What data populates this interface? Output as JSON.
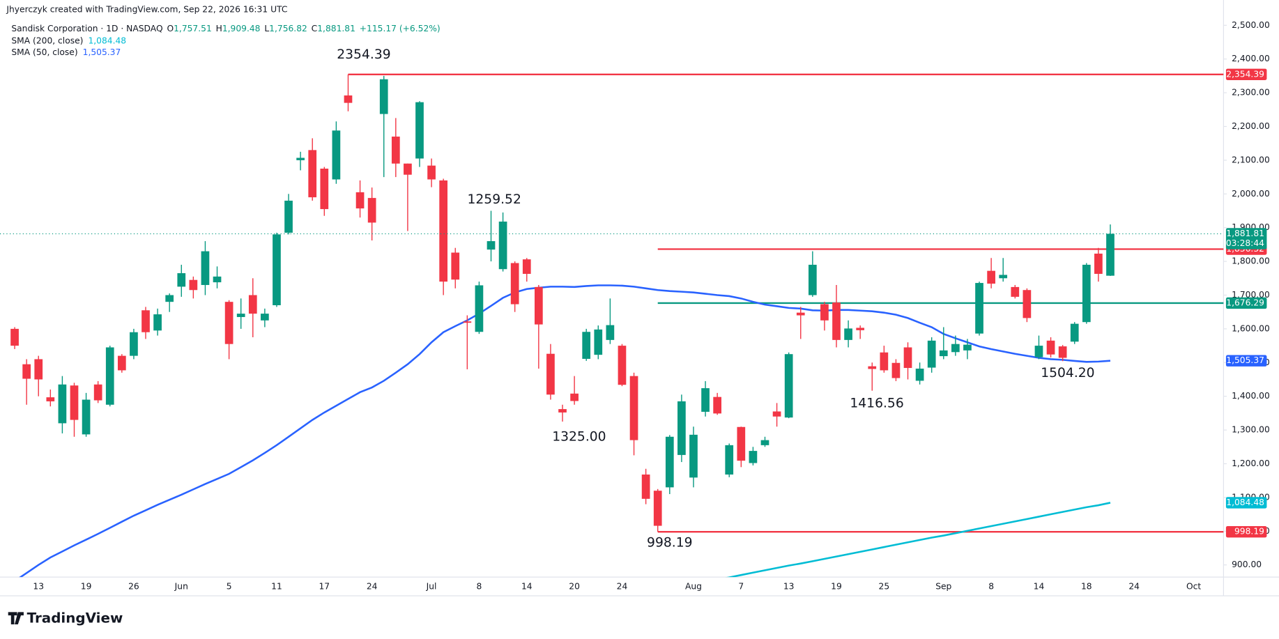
{
  "header": {
    "attribution": "Jhyerczyk created with TradingView.com, Sep 22, 2026 16:31 UTC",
    "symbol": "Sandisk Corporation · 1D · NASDAQ",
    "ohlc": [
      {
        "key": "O",
        "label": "1,757.51"
      },
      {
        "key": "H",
        "label": "1,909.48"
      },
      {
        "key": "L",
        "label": "1,756.82"
      },
      {
        "key": "C",
        "label": "1,881.81"
      }
    ],
    "change": "+115.17 (+6.52%)",
    "logo": "TradingView"
  },
  "chart_data": {
    "type": "candlestick",
    "categories": [
      null,
      null,
      "13",
      null,
      null,
      null,
      "19",
      null,
      null,
      null,
      "26",
      null,
      null,
      null,
      "Jun",
      null,
      null,
      null,
      "5",
      null,
      null,
      null,
      "11",
      null,
      null,
      null,
      "17",
      null,
      null,
      null,
      "24",
      null,
      null,
      null,
      null,
      "Jul",
      null,
      null,
      null,
      "8",
      null,
      null,
      null,
      "14",
      null,
      null,
      null,
      "20",
      null,
      null,
      null,
      "24",
      null,
      null,
      null,
      null,
      null,
      "Aug",
      null,
      null,
      null,
      "7",
      null,
      null,
      null,
      "13",
      null,
      null,
      null,
      "19",
      null,
      null,
      null,
      "25",
      null,
      null,
      null,
      null,
      "Sep",
      null,
      null,
      null,
      "8",
      null,
      null,
      null,
      "14",
      null,
      null,
      null,
      "18",
      null,
      null,
      null,
      "24",
      null,
      null,
      null,
      null,
      "Oct"
    ],
    "open": [
      1600,
      1495,
      1510,
      1397,
      1320,
      1432,
      1287,
      1435,
      1375,
      1520,
      1520,
      1655,
      1595,
      1680,
      1725,
      1745,
      1730,
      1738,
      1680,
      1635,
      1700,
      1625,
      1670,
      1885,
      2100,
      2130,
      2075,
      2043,
      2292,
      2005,
      1988,
      2237,
      2170,
      2090,
      2105,
      2084,
      2040,
      1826,
      1622,
      1591,
      1835,
      1777,
      1795,
      1806,
      1724,
      1526,
      1362,
      1408,
      1511,
      1523,
      1567,
      1550,
      1460,
      1168,
      1120,
      1130,
      1226,
      1159,
      1354,
      1398,
      1168,
      1309,
      1202,
      1255,
      1355,
      1337,
      1648,
      1700,
      1673,
      1678,
      1567,
      1603,
      1489,
      1530,
      1499,
      1545,
      1446,
      1485,
      1519,
      1531,
      1536,
      1586,
      1772,
      1750,
      1724,
      1715,
      1516,
      1565,
      1548,
      1562,
      1620,
      1823,
      1757.51,
      null,
      null,
      null,
      null,
      null,
      null,
      null
    ],
    "high": [
      1605,
      1510,
      1520,
      1420,
      1460,
      1440,
      1410,
      1445,
      1550,
      1525,
      1600,
      1665,
      1660,
      1705,
      1790,
      1755,
      1860,
      1785,
      1685,
      1690,
      1750,
      1660,
      1885,
      2000,
      2125,
      2165,
      2080,
      2215,
      2354.39,
      2040,
      2019,
      2350,
      2225,
      2090,
      2275,
      2105,
      2045,
      1840,
      1640,
      1740,
      1950,
      1945,
      1800,
      1810,
      1730,
      1555,
      1375,
      1460,
      1600,
      1610,
      1690,
      1555,
      1470,
      1185,
      1125,
      1285,
      1405,
      1310,
      1445,
      1410,
      1260,
      1310,
      1250,
      1280,
      1380,
      1530,
      1665,
      1830,
      1680,
      1730,
      1625,
      1610,
      1500,
      1550,
      1510,
      1560,
      1500,
      1575,
      1605,
      1580,
      1570,
      1740,
      1810,
      1810,
      1730,
      1720,
      1580,
      1575,
      1552,
      1620,
      1795,
      1840,
      1909.48,
      null,
      null,
      null,
      null,
      null,
      null,
      null
    ],
    "low": [
      1540,
      1375,
      1400,
      1370,
      1290,
      1280,
      1280,
      1380,
      1370,
      1470,
      1510,
      1570,
      1580,
      1650,
      1695,
      1690,
      1700,
      1720,
      1510,
      1600,
      1575,
      1605,
      1665,
      1880,
      2070,
      1980,
      1935,
      2030,
      2245,
      1930,
      1862,
      2050,
      2050,
      1890,
      2080,
      2020,
      1700,
      1720,
      1480,
      1585,
      1800,
      1770,
      1650,
      1740,
      1482,
      1390,
      1325,
      1375,
      1505,
      1510,
      1555,
      1430,
      1225,
      1080,
      998.19,
      1110,
      1205,
      1130,
      1340,
      1345,
      1160,
      1190,
      1195,
      1250,
      1310,
      1335,
      1570,
      1695,
      1595,
      1545,
      1545,
      1570,
      1416.56,
      1470,
      1445,
      1450,
      1435,
      1470,
      1510,
      1520,
      1510,
      1580,
      1720,
      1740,
      1690,
      1620,
      1510,
      1515,
      1504.2,
      1555,
      1615,
      1740,
      1756.82,
      null,
      null,
      null,
      null,
      null,
      null,
      null
    ],
    "close": [
      1550,
      1452,
      1450,
      1385,
      1435,
      1330,
      1390,
      1388,
      1545,
      1477,
      1590,
      1590,
      1643,
      1700,
      1765,
      1715,
      1830,
      1755,
      1555,
      1645,
      1645,
      1645,
      1880,
      1980,
      2107,
      1990,
      1955,
      2188,
      2270,
      1957,
      1915,
      2340,
      2090,
      2057,
      2272,
      2043,
      1740,
      1746,
      1618,
      1729,
      1860,
      1918,
      1673,
      1763,
      1613,
      1405,
      1352,
      1386,
      1591,
      1598,
      1611,
      1434,
      1270,
      1096,
      1016,
      1280,
      1385,
      1286,
      1424,
      1349,
      1255,
      1209,
      1238,
      1270,
      1340,
      1525,
      1640,
      1790,
      1625,
      1567,
      1601,
      1596,
      1481,
      1477,
      1454,
      1484,
      1482,
      1565,
      1536,
      1555,
      1553,
      1736,
      1734,
      1760,
      1695,
      1632,
      1550,
      1524,
      1514,
      1615,
      1790,
      1763,
      1881.81,
      null,
      null,
      null,
      null,
      null,
      null,
      null
    ],
    "up_color": "#089981",
    "down_color": "#f23645",
    "overlays": [
      {
        "name": "SMA (200, close)",
        "color": "#00bcd4",
        "label": "1,084.48",
        "values": [
          null,
          null,
          null,
          null,
          null,
          null,
          null,
          null,
          null,
          null,
          null,
          null,
          null,
          null,
          null,
          null,
          null,
          null,
          null,
          null,
          null,
          null,
          null,
          null,
          null,
          null,
          null,
          null,
          null,
          null,
          null,
          null,
          null,
          null,
          null,
          null,
          null,
          null,
          null,
          null,
          null,
          null,
          null,
          null,
          null,
          null,
          null,
          null,
          null,
          null,
          null,
          null,
          null,
          null,
          null,
          null,
          null,
          null,
          null,
          856,
          863,
          870,
          877,
          884,
          891,
          898,
          904,
          911,
          918,
          925,
          932,
          939,
          946,
          953,
          960,
          967,
          974,
          981,
          987,
          994,
          1001,
          1008,
          1015,
          1022,
          1029,
          1036,
          1043,
          1050,
          1057,
          1064,
          1071,
          1077,
          1084.48,
          null,
          null,
          null,
          null,
          null,
          null,
          null
        ]
      },
      {
        "name": "SMA (50, close)",
        "color": "#2962ff",
        "label": "1,505.37",
        "values": [
          852,
          876,
          900,
          922,
          940,
          958,
          975,
          992,
          1010,
          1028,
          1046,
          1062,
          1078,
          1093,
          1108,
          1124,
          1140,
          1155,
          1170,
          1190,
          1210,
          1232,
          1255,
          1280,
          1305,
          1330,
          1352,
          1372,
          1392,
          1412,
          1426,
          1446,
          1470,
          1495,
          1525,
          1560,
          1590,
          1608,
          1625,
          1645,
          1668,
          1692,
          1708,
          1718,
          1722,
          1725,
          1725,
          1724,
          1727,
          1729,
          1729,
          1728,
          1725,
          1720,
          1715,
          1712,
          1710,
          1708,
          1704,
          1700,
          1697,
          1690,
          1680,
          1672,
          1667,
          1662,
          1660,
          1655,
          1654,
          1656,
          1656,
          1654,
          1652,
          1648,
          1642,
          1632,
          1618,
          1605,
          1585,
          1572,
          1560,
          1548,
          1540,
          1533,
          1526,
          1520,
          1514,
          1510,
          1508,
          1505,
          1502,
          1503,
          1505.37,
          null,
          null,
          null,
          null,
          null,
          null,
          null
        ]
      }
    ],
    "levels": [
      {
        "value": 2354.39,
        "label": "2,354.39",
        "color": "#f23645"
      },
      {
        "value": 1836.32,
        "label": "1,836.32",
        "color": "#f23645"
      },
      {
        "value": 1676.29,
        "label": "1,676.29",
        "color": "#089981"
      },
      {
        "value": 998.19,
        "label": "998.19",
        "color": "#f23645"
      }
    ],
    "last_price": {
      "label": "1,881.81",
      "countdown": "03:28:44"
    },
    "annotations": [
      "2354.39",
      "1259.52",
      "1325.00",
      "998.19",
      "1416.56",
      "1504.20"
    ],
    "ylim": [
      864,
      2575
    ],
    "yticks": [
      {
        "value": 900,
        "label": "900.00"
      },
      {
        "value": 1000,
        "label": "1,000.00"
      },
      {
        "value": 1100,
        "label": "1,100.00"
      },
      {
        "value": 1200,
        "label": "1,200.00"
      },
      {
        "value": 1300,
        "label": "1,300.00"
      },
      {
        "value": 1400,
        "label": "1,400.00"
      },
      {
        "value": 1500,
        "label": "1,500.00"
      },
      {
        "value": 1600,
        "label": "1,600.00"
      },
      {
        "value": 1700,
        "label": "1,700.00"
      },
      {
        "value": 1800,
        "label": "1,800.00"
      },
      {
        "value": 1900,
        "label": "1,900.00"
      },
      {
        "value": 2000,
        "label": "2,000.00"
      },
      {
        "value": 2100,
        "label": "2,100.00"
      },
      {
        "value": 2200,
        "label": "2,200.00"
      },
      {
        "value": 2300,
        "label": "2,300.00"
      },
      {
        "value": 2400,
        "label": "2,400.00"
      },
      {
        "value": 2500,
        "label": "2,500.00"
      }
    ],
    "grid": false
  }
}
